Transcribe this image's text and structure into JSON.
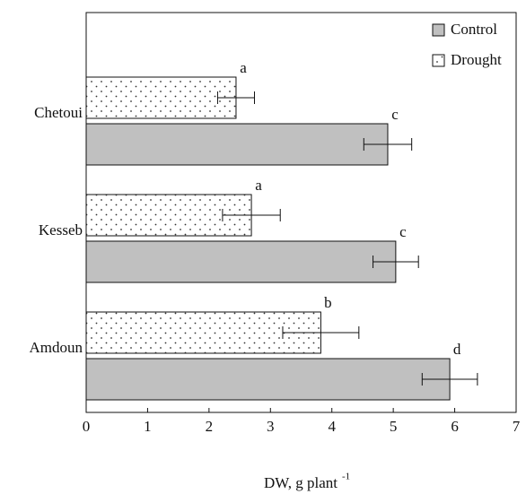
{
  "chart_data": {
    "type": "barh",
    "categories": [
      "Chetoui",
      "Kesseb",
      "Amdoun"
    ],
    "series": [
      {
        "name": "Control",
        "color": "#c0c0c0",
        "values": [
          4.91,
          5.04,
          5.92
        ],
        "errors": [
          0.39,
          0.37,
          0.45
        ],
        "letters": [
          "c",
          "c",
          "d"
        ]
      },
      {
        "name": "Drought",
        "color": "#ffffff",
        "values": [
          2.44,
          2.69,
          3.82
        ],
        "errors": [
          0.3,
          0.47,
          0.62
        ],
        "letters": [
          "a",
          "a",
          "b"
        ]
      }
    ],
    "xlabel": "DW, g  plant",
    "xlabel_sup": "-1",
    "xlim": [
      0,
      7
    ],
    "xticks": [
      0,
      1,
      2,
      3,
      4,
      5,
      6,
      7
    ],
    "legend": "top-right"
  }
}
